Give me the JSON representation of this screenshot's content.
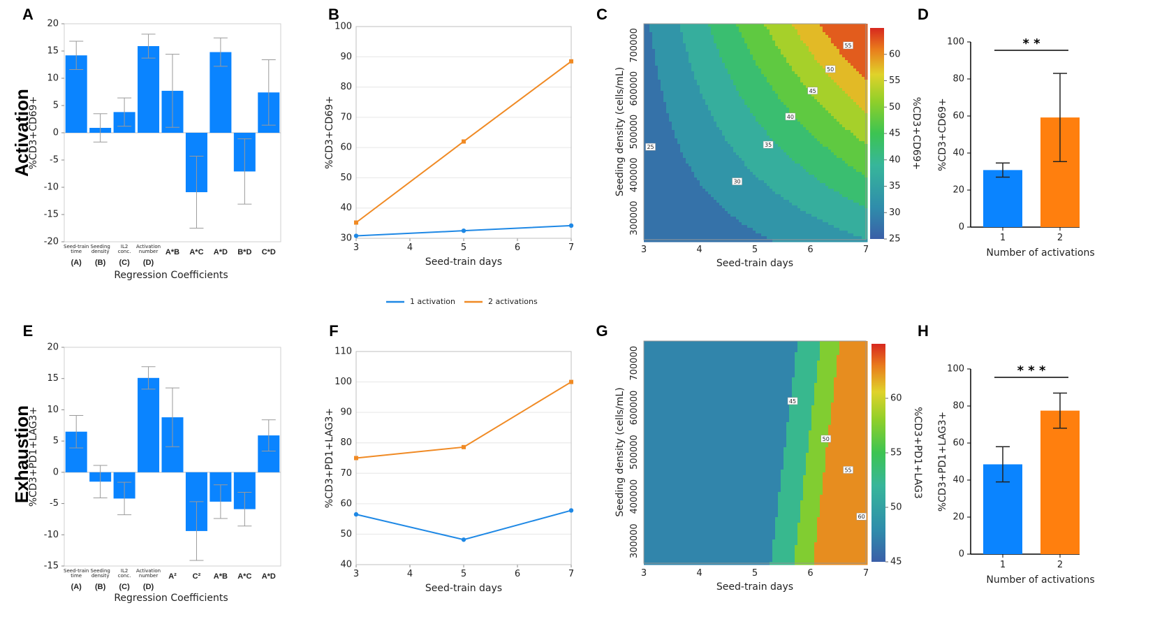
{
  "row_labels": [
    "Activation",
    "Exhaustion"
  ],
  "colors": {
    "blue": "#0A84FF",
    "orange": "#FF7F0E",
    "line_blue": "#1E88E5",
    "line_orange": "#F08A24",
    "errbar": "#9a9a9a"
  },
  "legend": {
    "items": [
      "1 activation",
      "2 activations"
    ]
  },
  "chart_data": [
    {
      "panel": "A",
      "type": "bar",
      "title": "",
      "ylabel": "%CD3+CD69+",
      "xlabel": "Regression Coefficients",
      "ylim": [
        -20,
        20
      ],
      "yticks": [
        -20,
        -15,
        -10,
        -5,
        0,
        5,
        10,
        15,
        20
      ],
      "categories": [
        {
          "small": [
            "Seed-train",
            "time"
          ],
          "bold": "(A)"
        },
        {
          "small": [
            "Seeding",
            "density"
          ],
          "bold": "(B)"
        },
        {
          "small": [
            "IL2",
            "conc."
          ],
          "bold": "(C)"
        },
        {
          "small": [
            "Activation",
            "number"
          ],
          "bold": "(D)"
        },
        {
          "small": [],
          "bold": "A*B"
        },
        {
          "small": [],
          "bold": "A*C"
        },
        {
          "small": [],
          "bold": "A*D"
        },
        {
          "small": [],
          "bold": "B*D"
        },
        {
          "small": [],
          "bold": "C*D"
        }
      ],
      "values": [
        14.2,
        0.9,
        3.8,
        15.9,
        7.7,
        -10.9,
        14.8,
        -7.1,
        7.4
      ],
      "errors": [
        2.6,
        2.6,
        2.6,
        2.2,
        6.7,
        6.6,
        2.6,
        6.0,
        6.0
      ]
    },
    {
      "panel": "B",
      "type": "line",
      "ylabel": "%CD3+CD69+",
      "xlabel": "Seed-train days",
      "xlim": [
        3,
        7
      ],
      "ylim": [
        30,
        100
      ],
      "xticks": [
        3,
        4,
        5,
        6,
        7
      ],
      "yticks": [
        30,
        40,
        50,
        60,
        70,
        80,
        90,
        100
      ],
      "x": [
        3,
        5,
        7
      ],
      "series": [
        {
          "name": "1 activation",
          "values": [
            30.8,
            32.5,
            34.2
          ]
        },
        {
          "name": "2 activations",
          "values": [
            35.2,
            62.0,
            88.5
          ]
        }
      ]
    },
    {
      "panel": "C",
      "type": "heatmap",
      "subtype": "contour",
      "ylabel": "Seeding density (cells/mL)",
      "xlabel": "Seed-train days",
      "colorbar_label": "%CD3+CD69+",
      "xlim": [
        3,
        7
      ],
      "ylim": [
        250000,
        750000
      ],
      "xticks": [
        3,
        4,
        5,
        6,
        7
      ],
      "yticks": [
        300000,
        400000,
        500000,
        600000,
        700000
      ],
      "clim": [
        25,
        65
      ],
      "colorbar_ticks": [
        25,
        30,
        35,
        40,
        45,
        50,
        55,
        60
      ],
      "contour_levels": [
        25,
        30,
        35,
        40,
        45,
        50,
        55,
        60
      ],
      "contour_labels": [
        "25",
        "30",
        "35",
        "40",
        "45",
        "50",
        "55"
      ]
    },
    {
      "panel": "D",
      "type": "bar",
      "ylabel": "%CD3+CD69+",
      "xlabel": "Number of activations",
      "ylim": [
        0,
        100
      ],
      "yticks": [
        0,
        20,
        40,
        60,
        80,
        100
      ],
      "categories": [
        "1",
        "2"
      ],
      "values": [
        30.8,
        59.2
      ],
      "errors": [
        3.8,
        23.8
      ],
      "significance": "**"
    },
    {
      "panel": "E",
      "type": "bar",
      "ylabel": "%CD3+PD1+LAG3+",
      "xlabel": "Regression Coefficients",
      "ylim": [
        -15,
        20
      ],
      "yticks": [
        -15,
        -10,
        -5,
        0,
        5,
        10,
        15,
        20
      ],
      "categories": [
        {
          "small": [
            "Seed-train",
            "time"
          ],
          "bold": "(A)"
        },
        {
          "small": [
            "Seeding",
            "density"
          ],
          "bold": "(B)"
        },
        {
          "small": [
            "IL2",
            "conc."
          ],
          "bold": "(C)"
        },
        {
          "small": [
            "Activation",
            "number"
          ],
          "bold": "(D)"
        },
        {
          "small": [],
          "bold": "A²"
        },
        {
          "small": [],
          "bold": "C²"
        },
        {
          "small": [],
          "bold": "A*B"
        },
        {
          "small": [],
          "bold": "A*C"
        },
        {
          "small": [],
          "bold": "A*D"
        }
      ],
      "values": [
        6.5,
        -1.5,
        -4.2,
        15.1,
        8.8,
        -9.4,
        -4.7,
        -5.9,
        5.9
      ],
      "errors": [
        2.6,
        2.6,
        2.6,
        1.8,
        4.7,
        4.7,
        2.7,
        2.7,
        2.5
      ]
    },
    {
      "panel": "F",
      "type": "line",
      "ylabel": "%CD3+PD1+LAG3+",
      "xlabel": "Seed-train days",
      "xlim": [
        3,
        7
      ],
      "ylim": [
        40,
        110
      ],
      "xticks": [
        3,
        4,
        5,
        6,
        7
      ],
      "yticks": [
        40,
        50,
        60,
        70,
        80,
        90,
        100,
        110
      ],
      "x": [
        3,
        5,
        7
      ],
      "series": [
        {
          "name": "1 activation",
          "values": [
            56.5,
            48.2,
            57.8
          ]
        },
        {
          "name": "2 activations",
          "values": [
            75.0,
            78.6,
            100.0
          ]
        }
      ]
    },
    {
      "panel": "G",
      "type": "heatmap",
      "subtype": "contour",
      "ylabel": "Seeding density (cells/mL)",
      "xlabel": "Seed-train days",
      "colorbar_label": "%CD3+PD1+LAG3",
      "xlim": [
        3,
        7
      ],
      "ylim": [
        250000,
        750000
      ],
      "xticks": [
        3,
        4,
        5,
        6,
        7
      ],
      "yticks": [
        300000,
        400000,
        500000,
        600000,
        700000
      ],
      "clim": [
        45,
        65
      ],
      "colorbar_ticks": [
        45,
        50,
        55,
        60
      ],
      "contour_levels": [
        45,
        50,
        55,
        60
      ],
      "contour_labels": [
        "45",
        "50",
        "55",
        "60"
      ]
    },
    {
      "panel": "H",
      "type": "bar",
      "ylabel": "%CD3+PD1+LAG3+",
      "xlabel": "Number of activations",
      "ylim": [
        0,
        100
      ],
      "yticks": [
        0,
        20,
        40,
        60,
        80,
        100
      ],
      "categories": [
        "1",
        "2"
      ],
      "values": [
        48.5,
        77.5
      ],
      "errors": [
        9.5,
        9.5
      ],
      "significance": "***"
    }
  ]
}
